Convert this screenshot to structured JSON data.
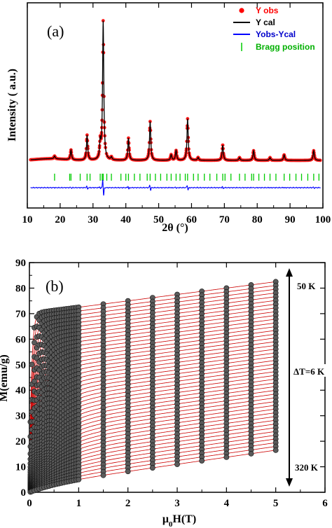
{
  "chart_data": [
    {
      "type": "line",
      "panel_label": "(a)",
      "xlabel": "2θ (°)",
      "ylabel": "Intensity ( a.u.)",
      "xlim": [
        10,
        100
      ],
      "x_ticks": [
        "10",
        "20",
        "30",
        "40",
        "50",
        "60",
        "70",
        "80",
        "90",
        "100"
      ],
      "y_ticks_labeled": false,
      "legend_position": "top-right",
      "legend": [
        {
          "label": "Y obs",
          "color": "#ff0000",
          "marker": "dot"
        },
        {
          "label": "Y cal",
          "color": "#000000",
          "marker": "line"
        },
        {
          "label": "Yobs-Ycal",
          "color": "#0000ff",
          "marker": "line"
        },
        {
          "label": "Bragg position",
          "color": "#00cc00",
          "marker": "bar"
        }
      ],
      "background_level": 0.035,
      "peaks": [
        {
          "x": 18.3,
          "h": 0.02
        },
        {
          "x": 23.3,
          "h": 0.07
        },
        {
          "x": 28.2,
          "h": 0.18
        },
        {
          "x": 32.2,
          "h": 0.12
        },
        {
          "x": 33.1,
          "h": 1.0
        },
        {
          "x": 35.6,
          "h": 0.02
        },
        {
          "x": 40.8,
          "h": 0.16
        },
        {
          "x": 47.4,
          "h": 0.28
        },
        {
          "x": 53.8,
          "h": 0.04
        },
        {
          "x": 55.3,
          "h": 0.07
        },
        {
          "x": 58.8,
          "h": 0.3
        },
        {
          "x": 62.0,
          "h": 0.02
        },
        {
          "x": 69.5,
          "h": 0.11
        },
        {
          "x": 74.6,
          "h": 0.02
        },
        {
          "x": 78.9,
          "h": 0.07
        },
        {
          "x": 83.9,
          "h": 0.02
        },
        {
          "x": 88.2,
          "h": 0.04
        },
        {
          "x": 97.2,
          "h": 0.07
        }
      ],
      "bragg_positions": [
        18.3,
        22.9,
        23.3,
        26.1,
        28.2,
        29.1,
        32.2,
        32.8,
        33.1,
        34.2,
        35.6,
        38.5,
        40.0,
        40.8,
        42.6,
        44.3,
        46.5,
        47.4,
        49.0,
        50.6,
        52.5,
        53.8,
        55.3,
        56.5,
        58.1,
        58.8,
        60.6,
        62.0,
        63.9,
        65.6,
        67.7,
        69.5,
        70.2,
        72.0,
        74.6,
        76.3,
        78.3,
        78.9,
        80.5,
        82.2,
        83.9,
        85.7,
        88.2,
        89.9,
        91.8,
        93.5,
        95.4,
        97.2,
        98.8
      ]
    },
    {
      "type": "scatter",
      "panel_label": "(b)",
      "xlabel": "μ0H(T)",
      "ylabel": "M(emu/g)",
      "xlim": [
        0,
        6
      ],
      "ylim": [
        0,
        90
      ],
      "x_ticks": [
        "0",
        "1",
        "2",
        "3",
        "4",
        "5",
        "6"
      ],
      "y_ticks": [
        "0",
        "10",
        "20",
        "30",
        "40",
        "50",
        "60",
        "70",
        "80",
        "90"
      ],
      "marker_color": "#555555",
      "fit_line_color": "#cc0000",
      "series_count": 46,
      "temperature_range_K": [
        50,
        320
      ],
      "delta_T_K": 6,
      "field_points_T": [
        0.02,
        0.05,
        0.1,
        0.15,
        0.2,
        0.25,
        0.3,
        0.35,
        0.4,
        0.45,
        0.5,
        0.55,
        0.6,
        0.65,
        0.7,
        0.75,
        0.8,
        0.85,
        0.9,
        0.95,
        1.0,
        1.5,
        2.0,
        2.5,
        3.0,
        3.5,
        4.0,
        4.5,
        5.0
      ],
      "M_at_5T_range": [
        16.5,
        82.5
      ],
      "M_at_1T_range": [
        5.5,
        72.5
      ],
      "annotations": {
        "top_label": "50 K",
        "middle_label": "ΔT=6 K",
        "bottom_label": "320 K"
      }
    }
  ]
}
